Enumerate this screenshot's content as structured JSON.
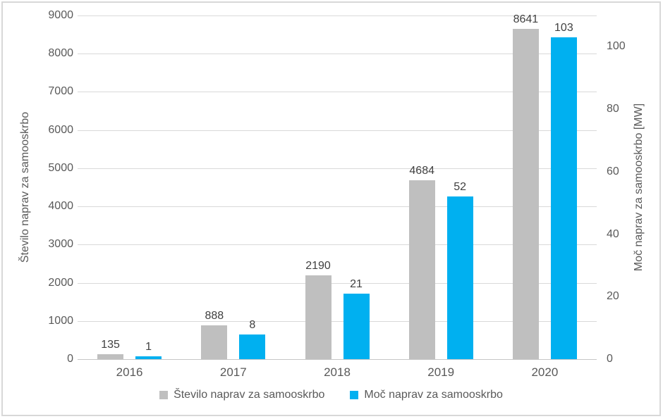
{
  "figure": {
    "background": "#FFFFFF",
    "border_color": "#D8D8D8"
  },
  "chart_data": {
    "type": "bar",
    "title": "",
    "categories": [
      "2016",
      "2017",
      "2018",
      "2019",
      "2020"
    ],
    "series": [
      {
        "name": "Število naprav za samooskrbo",
        "axis": "left",
        "color": "#BFBFBF",
        "values": [
          135,
          888,
          2190,
          4684,
          8641
        ]
      },
      {
        "name": "Moč naprav za samooskrbo",
        "axis": "right",
        "color": "#00B0F0",
        "values": [
          1,
          8,
          21,
          52,
          103
        ]
      }
    ],
    "left_axis": {
      "label": "Število naprav za samooskrbo",
      "min": 0,
      "max": 9000,
      "step": 1000,
      "ticks": [
        0,
        1000,
        2000,
        3000,
        4000,
        5000,
        6000,
        7000,
        8000,
        9000
      ]
    },
    "right_axis": {
      "label": "Moč naprav za samooskrbo [MW]",
      "min": 0,
      "max": 110,
      "step": 20,
      "ticks": [
        0,
        20,
        40,
        60,
        80,
        100
      ]
    },
    "grid": true,
    "legend_position": "bottom",
    "colors": {
      "gridline": "#D9D9D9",
      "tick_text": "#595959",
      "data_label_text": "#404040"
    }
  }
}
